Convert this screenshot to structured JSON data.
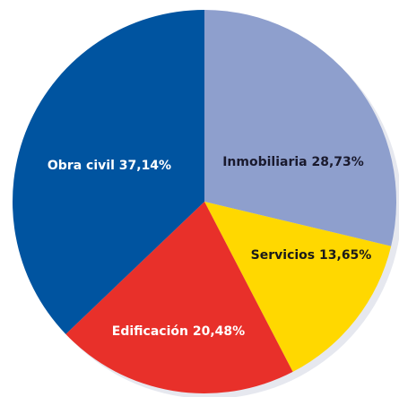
{
  "chart_data": {
    "type": "pie",
    "categories": [
      "Inmobiliaria",
      "Servicios",
      "Edificación",
      "Obra civil"
    ],
    "values": [
      28.73,
      13.65,
      20.48,
      37.14
    ],
    "value_labels": [
      "28,73%",
      "13,65%",
      "20,48%",
      "37,14%"
    ],
    "colors": [
      "#8e9fcd",
      "#ffd800",
      "#e8302a",
      "#0054a0"
    ]
  }
}
